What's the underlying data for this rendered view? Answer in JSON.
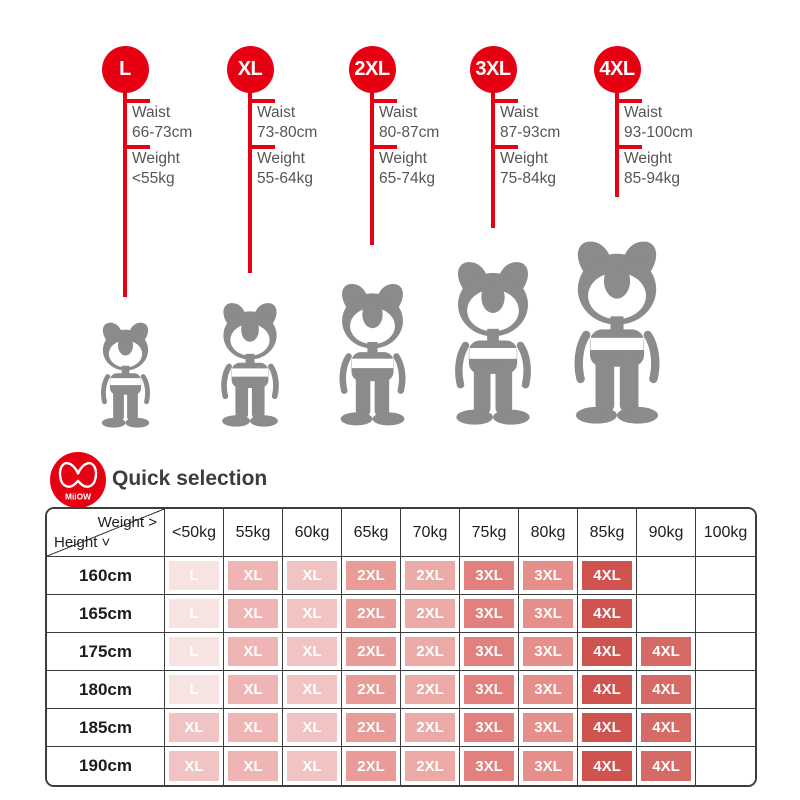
{
  "colors": {
    "accent_red": "#e60012",
    "mascot_gray": "#8b8b8b",
    "table_border": "#3c3c3c"
  },
  "size_guide": {
    "labels": {
      "waist": "Waist",
      "weight": "Weight"
    },
    "sizes": [
      {
        "name": "L",
        "waist": "66-73cm",
        "weight": "<55kg"
      },
      {
        "name": "XL",
        "waist": "73-80cm",
        "weight": "55-64kg"
      },
      {
        "name": "2XL",
        "waist": "80-87cm",
        "weight": "65-74kg"
      },
      {
        "name": "3XL",
        "waist": "87-93cm",
        "weight": "75-84kg"
      },
      {
        "name": "4XL",
        "waist": "93-100cm",
        "weight": "85-94kg"
      }
    ]
  },
  "quick_selection": {
    "logo_text": "MiiOW",
    "title": "Quick selection",
    "corner": {
      "weight_label": "Weight >",
      "height_label": "Height ˅"
    },
    "weight_columns": [
      "<50kg",
      "55kg",
      "60kg",
      "65kg",
      "70kg",
      "75kg",
      "80kg",
      "85kg",
      "90kg",
      "100kg"
    ],
    "palette": {
      "L": "#f8e3e3",
      "XLa": "#efb5b5",
      "XLb": "#f2c3c3",
      "2XLa": "#e99b98",
      "2XLb": "#ecaaa7",
      "3XLa": "#e1807c",
      "3XLb": "#e58e8a",
      "4XLa": "#cf5450",
      "4XLb": "#d66a65"
    },
    "rows": [
      {
        "height": "160cm",
        "cells": [
          {
            "label": "L",
            "tone": "L"
          },
          {
            "label": "XL",
            "tone": "XLa"
          },
          {
            "label": "XL",
            "tone": "XLb"
          },
          {
            "label": "2XL",
            "tone": "2XLa"
          },
          {
            "label": "2XL",
            "tone": "2XLb"
          },
          {
            "label": "3XL",
            "tone": "3XLa"
          },
          {
            "label": "3XL",
            "tone": "3XLb"
          },
          {
            "label": "4XL",
            "tone": "4XLa"
          },
          null,
          null
        ]
      },
      {
        "height": "165cm",
        "cells": [
          {
            "label": "L",
            "tone": "L"
          },
          {
            "label": "XL",
            "tone": "XLa"
          },
          {
            "label": "XL",
            "tone": "XLb"
          },
          {
            "label": "2XL",
            "tone": "2XLa"
          },
          {
            "label": "2XL",
            "tone": "2XLb"
          },
          {
            "label": "3XL",
            "tone": "3XLa"
          },
          {
            "label": "3XL",
            "tone": "3XLb"
          },
          {
            "label": "4XL",
            "tone": "4XLa"
          },
          null,
          null
        ]
      },
      {
        "height": "175cm",
        "cells": [
          {
            "label": "L",
            "tone": "L"
          },
          {
            "label": "XL",
            "tone": "XLa"
          },
          {
            "label": "XL",
            "tone": "XLb"
          },
          {
            "label": "2XL",
            "tone": "2XLa"
          },
          {
            "label": "2XL",
            "tone": "2XLb"
          },
          {
            "label": "3XL",
            "tone": "3XLa"
          },
          {
            "label": "3XL",
            "tone": "3XLb"
          },
          {
            "label": "4XL",
            "tone": "4XLa"
          },
          {
            "label": "4XL",
            "tone": "4XLb"
          },
          null
        ]
      },
      {
        "height": "180cm",
        "cells": [
          {
            "label": "L",
            "tone": "L"
          },
          {
            "label": "XL",
            "tone": "XLa"
          },
          {
            "label": "XL",
            "tone": "XLb"
          },
          {
            "label": "2XL",
            "tone": "2XLa"
          },
          {
            "label": "2XL",
            "tone": "2XLb"
          },
          {
            "label": "3XL",
            "tone": "3XLa"
          },
          {
            "label": "3XL",
            "tone": "3XLb"
          },
          {
            "label": "4XL",
            "tone": "4XLa"
          },
          {
            "label": "4XL",
            "tone": "4XLb"
          },
          null
        ]
      },
      {
        "height": "185cm",
        "cells": [
          {
            "label": "XL",
            "tone": "XLb"
          },
          {
            "label": "XL",
            "tone": "XLa"
          },
          {
            "label": "XL",
            "tone": "XLb"
          },
          {
            "label": "2XL",
            "tone": "2XLa"
          },
          {
            "label": "2XL",
            "tone": "2XLb"
          },
          {
            "label": "3XL",
            "tone": "3XLa"
          },
          {
            "label": "3XL",
            "tone": "3XLb"
          },
          {
            "label": "4XL",
            "tone": "4XLa"
          },
          {
            "label": "4XL",
            "tone": "4XLb"
          },
          null
        ]
      },
      {
        "height": "190cm",
        "cells": [
          {
            "label": "XL",
            "tone": "XLb"
          },
          {
            "label": "XL",
            "tone": "XLa"
          },
          {
            "label": "XL",
            "tone": "XLb"
          },
          {
            "label": "2XL",
            "tone": "2XLa"
          },
          {
            "label": "2XL",
            "tone": "2XLb"
          },
          {
            "label": "3XL",
            "tone": "3XLa"
          },
          {
            "label": "3XL",
            "tone": "3XLb"
          },
          {
            "label": "4XL",
            "tone": "4XLa"
          },
          {
            "label": "4XL",
            "tone": "4XLb"
          },
          null
        ]
      }
    ]
  }
}
